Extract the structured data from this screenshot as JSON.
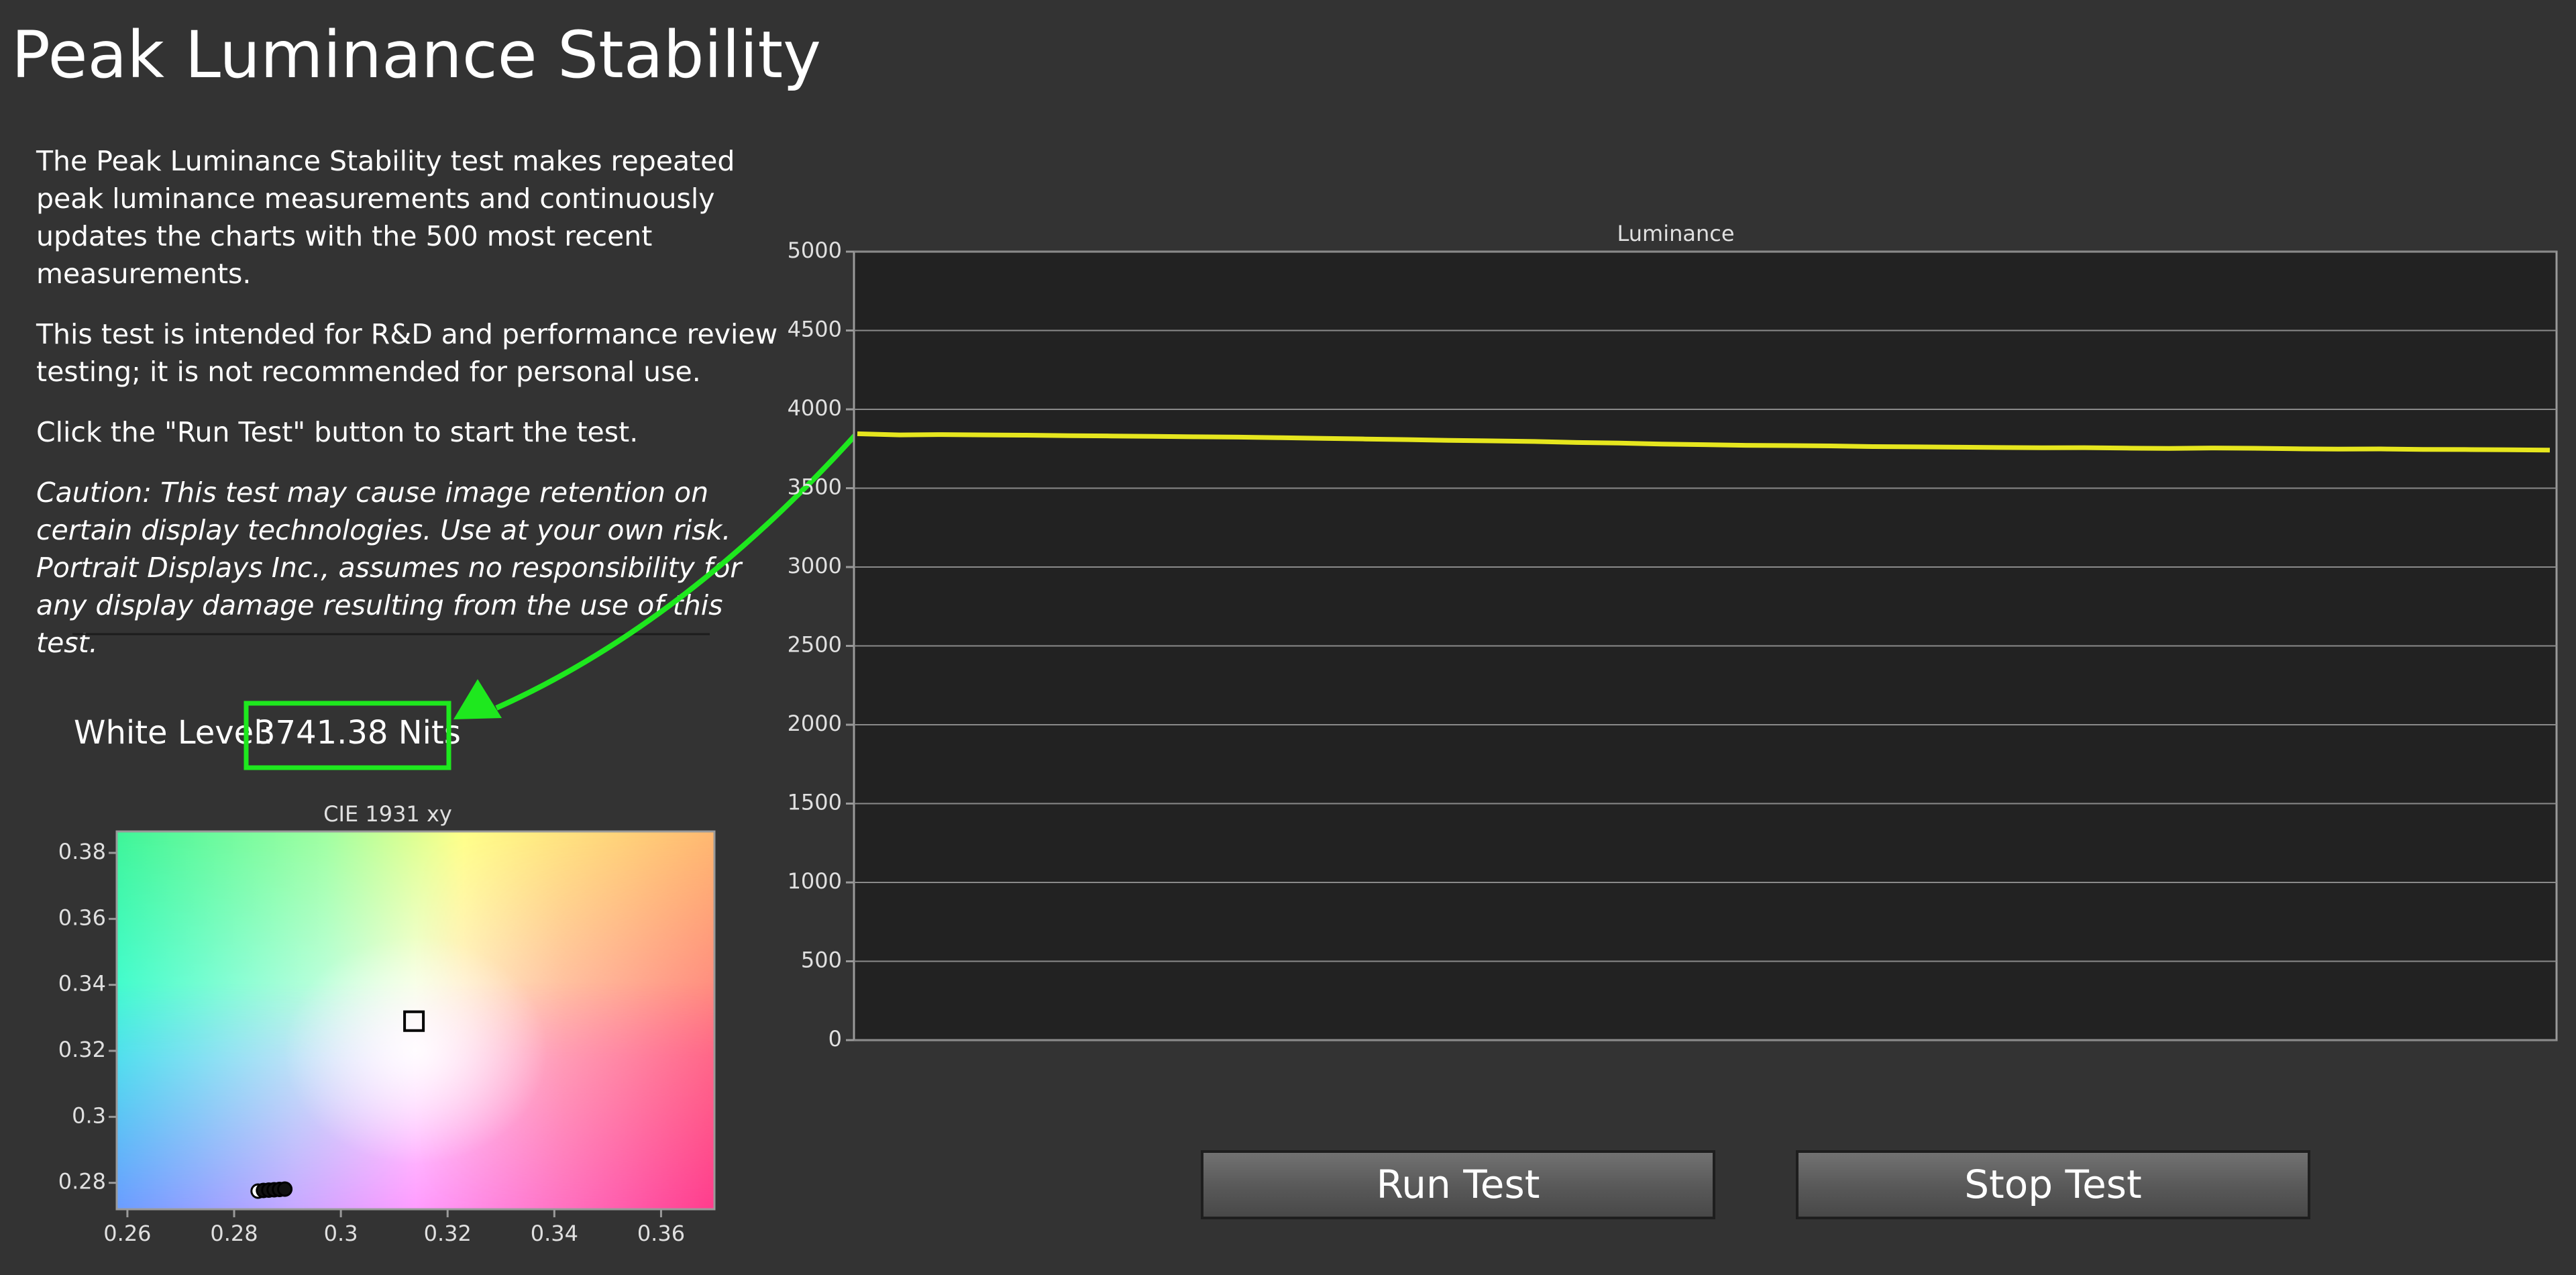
{
  "header": {
    "title": "Peak Luminance Stability"
  },
  "description": {
    "paragraphs": [
      "The Peak Luminance Stability test makes repeated peak luminance measurements and continuously updates the charts with the 500 most recent measurements.",
      "This test is intended for R&D and performance review testing; it is not recommended for personal use.",
      "Click the \"Run Test\" button to start the test."
    ],
    "caution": "Caution: This test may cause image retention on certain display technologies. Use at your own risk. Portrait Displays Inc., assumes no responsibility for any display damage resulting from the use of this test."
  },
  "white_level": {
    "label": "White Level:",
    "value": "3741.38 Nits"
  },
  "chart_data": [
    {
      "type": "line",
      "title": "Luminance",
      "series": [
        {
          "color": "#e6e61e",
          "values": [
            3845,
            3838,
            3840,
            3838,
            3836,
            3833,
            3831,
            3829,
            3826,
            3824,
            3820,
            3816,
            3812,
            3808,
            3803,
            3800,
            3796,
            3790,
            3786,
            3780,
            3776,
            3772,
            3770,
            3768,
            3764,
            3762,
            3760,
            3758,
            3756,
            3757,
            3754,
            3752,
            3755,
            3753,
            3750,
            3748,
            3749,
            3746,
            3745,
            3744,
            3741.38
          ]
        }
      ],
      "ylim": [
        0,
        5000
      ],
      "yticks": [
        0,
        500,
        1000,
        1500,
        2000,
        2500,
        3000,
        3500,
        4000,
        4500,
        5000
      ],
      "grid": true
    },
    {
      "type": "scatter",
      "title": "CIE 1931 xy",
      "x": [
        0.2845,
        0.2855,
        0.2865,
        0.2875,
        0.2885,
        0.2895
      ],
      "y": [
        0.2775,
        0.2777,
        0.2778,
        0.2779,
        0.278,
        0.2781
      ],
      "target": {
        "x": 0.3137,
        "y": 0.329
      },
      "xlim": [
        0.258,
        0.37
      ],
      "ylim": [
        0.272,
        0.3865
      ],
      "xticks": [
        0.26,
        0.28,
        0.3,
        0.32,
        0.34,
        0.36
      ],
      "yticks": [
        0.28,
        0.3,
        0.32,
        0.34,
        0.36,
        0.38
      ]
    }
  ],
  "buttons": [
    "Run Test",
    "Stop Test"
  ]
}
